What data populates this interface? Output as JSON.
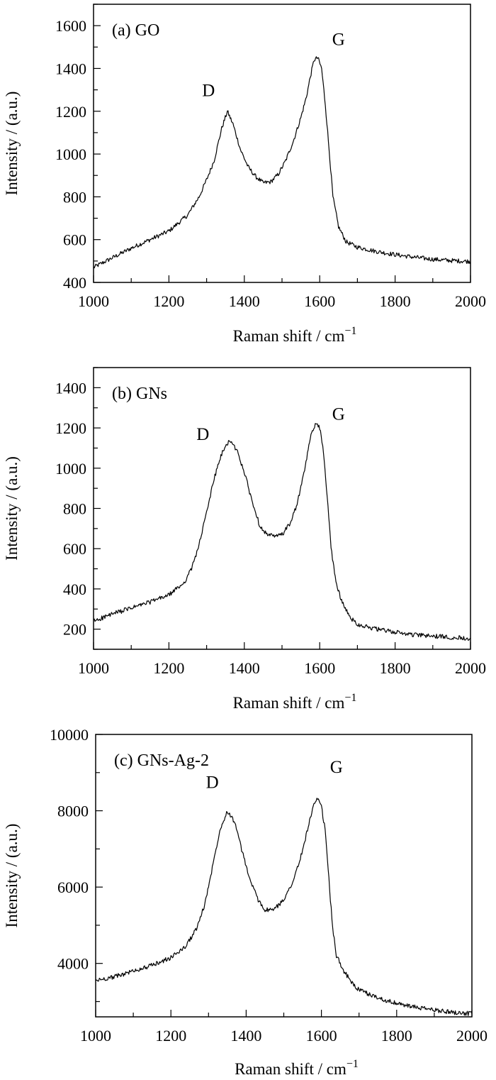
{
  "chart_data": [
    {
      "type": "line",
      "panel_label": "(a) GO",
      "xlabel": "Raman shift / cm",
      "xlabel_sup": "−1",
      "ylabel": "Intensity / (a.u.)",
      "xlim": [
        1000,
        2000
      ],
      "ylim": [
        400,
        1700
      ],
      "xticks": [
        1000,
        1200,
        1400,
        1600,
        1800,
        2000
      ],
      "xtick_labels": [
        "1000",
        "1200",
        "1400",
        "1600",
        "1800",
        "2000"
      ],
      "yticks": [
        400,
        600,
        800,
        1000,
        1200,
        1400,
        1600
      ],
      "ytick_labels": [
        "400",
        "600",
        "800",
        "1000",
        "1200",
        "1400",
        "1600"
      ],
      "annotations": [
        {
          "text": "D",
          "x": 1305,
          "y": 1270
        },
        {
          "text": "G",
          "x": 1650,
          "y": 1510
        }
      ],
      "series": [
        {
          "x": [
            1000,
            1050,
            1100,
            1150,
            1200,
            1250,
            1280,
            1300,
            1320,
            1340,
            1355,
            1370,
            1390,
            1410,
            1430,
            1450,
            1470,
            1490,
            1510,
            1530,
            1550,
            1565,
            1575,
            1585,
            1595,
            1605,
            1615,
            1625,
            1635,
            1650,
            1670,
            1700,
            1750,
            1800,
            1850,
            1900,
            1950,
            2000
          ],
          "y": [
            470,
            515,
            560,
            600,
            640,
            715,
            800,
            880,
            970,
            1120,
            1200,
            1140,
            1020,
            940,
            895,
            865,
            870,
            905,
            970,
            1060,
            1170,
            1270,
            1360,
            1440,
            1450,
            1400,
            1230,
            1020,
            800,
            660,
            590,
            565,
            545,
            530,
            518,
            508,
            502,
            498
          ]
        }
      ]
    },
    {
      "type": "line",
      "panel_label": "(b) GNs",
      "xlabel": "Raman shift / cm",
      "xlabel_sup": "−1",
      "ylabel": "Intensity / (a.u.)",
      "xlim": [
        1000,
        2000
      ],
      "ylim": [
        100,
        1500
      ],
      "xticks": [
        1000,
        1200,
        1400,
        1600,
        1800,
        2000
      ],
      "xtick_labels": [
        "1000",
        "1200",
        "1400",
        "1600",
        "1800",
        "2000"
      ],
      "yticks": [
        200,
        400,
        600,
        800,
        1000,
        1200,
        1400
      ],
      "ytick_labels": [
        "200",
        "400",
        "600",
        "800",
        "1000",
        "1200",
        "1400"
      ],
      "annotations": [
        {
          "text": "D",
          "x": 1290,
          "y": 1140
        },
        {
          "text": "G",
          "x": 1650,
          "y": 1240
        }
      ],
      "series": [
        {
          "x": [
            1000,
            1050,
            1100,
            1150,
            1200,
            1240,
            1260,
            1280,
            1300,
            1320,
            1340,
            1360,
            1380,
            1400,
            1420,
            1440,
            1460,
            1480,
            1500,
            1520,
            1540,
            1560,
            1575,
            1590,
            1600,
            1610,
            1620,
            1630,
            1645,
            1660,
            1680,
            1700,
            1750,
            1800,
            1850,
            1900,
            1950,
            2000
          ],
          "y": [
            240,
            275,
            305,
            335,
            370,
            430,
            500,
            620,
            780,
            950,
            1070,
            1140,
            1090,
            980,
            840,
            720,
            670,
            660,
            670,
            720,
            820,
            990,
            1150,
            1230,
            1200,
            1080,
            860,
            600,
            420,
            330,
            260,
            225,
            200,
            185,
            172,
            165,
            160,
            155
          ]
        }
      ]
    },
    {
      "type": "line",
      "panel_label": "(c) GNs-Ag-2",
      "xlabel": "Raman shift / cm",
      "xlabel_sup": "−1",
      "ylabel": "Intensity / (a.u.)",
      "xlim": [
        1000,
        2000
      ],
      "ylim": [
        2600,
        10000
      ],
      "xticks": [
        1000,
        1200,
        1400,
        1600,
        1800,
        2000
      ],
      "xtick_labels": [
        "1000",
        "1200",
        "1400",
        "1600",
        "1800",
        "2000"
      ],
      "yticks": [
        4000,
        6000,
        8000,
        10000
      ],
      "ytick_labels": [
        "4000",
        "6000",
        "8000",
        "10000"
      ],
      "annotations": [
        {
          "text": "D",
          "x": 1310,
          "y": 8600
        },
        {
          "text": "G",
          "x": 1640,
          "y": 9000
        }
      ],
      "series": [
        {
          "x": [
            1000,
            1050,
            1100,
            1150,
            1200,
            1240,
            1270,
            1290,
            1310,
            1330,
            1350,
            1370,
            1390,
            1410,
            1430,
            1450,
            1470,
            1490,
            1510,
            1530,
            1550,
            1565,
            1580,
            1590,
            1600,
            1610,
            1620,
            1630,
            1640,
            1660,
            1680,
            1700,
            1750,
            1800,
            1850,
            1900,
            1950,
            2000
          ],
          "y": [
            3550,
            3650,
            3800,
            3950,
            4150,
            4450,
            4950,
            5550,
            6500,
            7500,
            8000,
            7700,
            6900,
            6200,
            5700,
            5400,
            5400,
            5550,
            5850,
            6300,
            6950,
            7600,
            8150,
            8300,
            8100,
            7500,
            6200,
            4900,
            4200,
            3800,
            3500,
            3300,
            3100,
            2950,
            2850,
            2780,
            2720,
            2680
          ]
        }
      ]
    }
  ]
}
